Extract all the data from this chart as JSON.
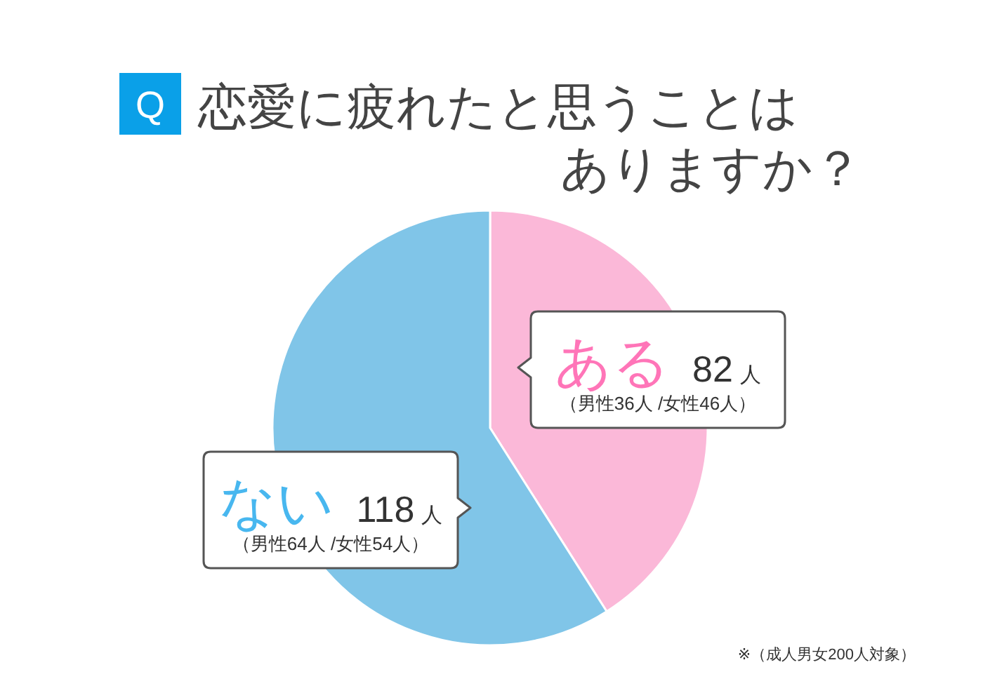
{
  "chart_data": {
    "type": "pie",
    "title": "Q 恋愛に疲れたと思うことはありますか？",
    "categories": [
      "ある",
      "ない"
    ],
    "values": [
      82,
      118
    ],
    "colors": [
      "#fbb8d8",
      "#80c5e8"
    ],
    "value_labels": [
      "82人",
      "118人"
    ],
    "annotations": [
      {
        "text": "（男性36人 /女性46人）",
        "x": "ある"
      },
      {
        "text": "（男性64人 /女性54人）",
        "x": "ない"
      },
      "※（成人男女200人対象）"
    ]
  }
}
